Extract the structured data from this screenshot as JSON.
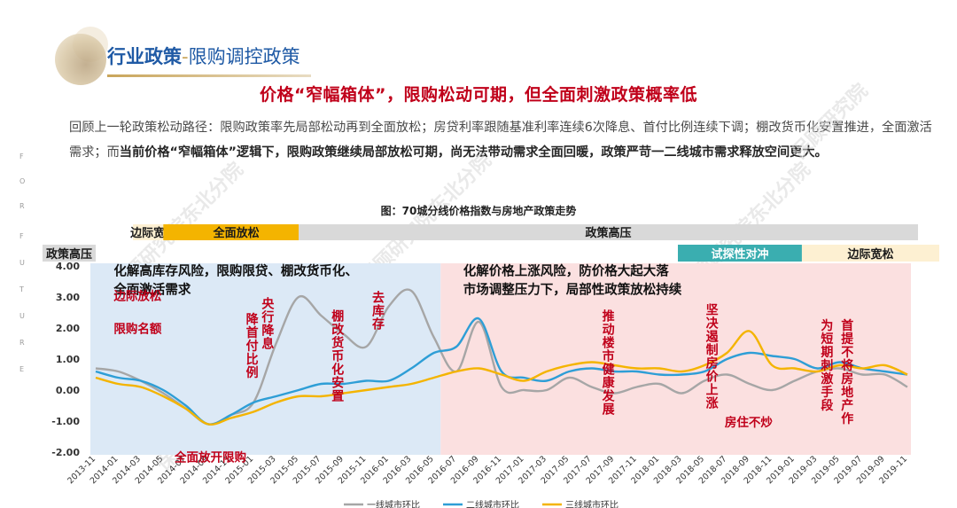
{
  "header": {
    "title_part1": "行业政策",
    "title_sep": "-",
    "title_part2": "限购调控政策",
    "headline": "价格“窄幅箱体”，限购松动可期，但全面刺激政策概率低"
  },
  "intro": {
    "normal": "回顾上一轮政策松动路径：限购政策率先局部松动再到全面放松；房贷利率跟随基准利率连续6次降息、首付比例连续下调；棚改货币化安置推进，全面激活需求；而",
    "bold": "当前价格“窄幅箱体”逻辑下，限购政策继续局部放松可期，尚无法带动需求全面回暖，政策严苛一二线城市需求释放空间更大。"
  },
  "side_letters": [
    "F",
    "O",
    "R",
    "F",
    "U",
    "T",
    "U",
    "R",
    "E"
  ],
  "watermarks": [
    "保顾研究院",
    "保顾研究院东北分院",
    "保顾研究院东北分院",
    "保顾研究院东北分院",
    "保顾研究院东北分院",
    "保顾研究院东北分院"
  ],
  "chart_data": {
    "type": "line",
    "title": "图：70城分线价格指数与房地产政策走势",
    "ylim": [
      -2,
      4
    ],
    "yticks": [
      "4.00",
      "3.00",
      "2.00",
      "1.00",
      "0.00",
      "-1.00",
      "-2.00"
    ],
    "x": [
      "2013-11",
      "2014-01",
      "2014-03",
      "2014-05",
      "2014-07",
      "2014-09",
      "2014-11",
      "2015-01",
      "2015-03",
      "2015-05",
      "2015-07",
      "2015-09",
      "2015-11",
      "2016-01",
      "2016-03",
      "2016-05",
      "2016-07",
      "2016-09",
      "2016-11",
      "2017-01",
      "2017-03",
      "2017-05",
      "2017-07",
      "2017-09",
      "2017-11",
      "2018-01",
      "2018-03",
      "2018-05",
      "2018-07",
      "2018-09",
      "2018-11",
      "2019-01",
      "2019-03",
      "2019-05",
      "2019-07",
      "2019-09",
      "2019-11"
    ],
    "series": [
      {
        "name": "一线城市环比",
        "color": "#a6a6a6",
        "values": [
          0.7,
          0.6,
          0.3,
          -0.1,
          -0.6,
          -1.1,
          -0.8,
          -0.4,
          1.5,
          3.0,
          2.4,
          1.8,
          1.4,
          2.7,
          3.2,
          1.7,
          0.6,
          2.2,
          0.1,
          0.0,
          0.0,
          0.4,
          0.1,
          -0.1,
          0.1,
          0.2,
          -0.1,
          0.3,
          0.5,
          0.2,
          0.0,
          0.3,
          0.6,
          0.7,
          0.5,
          0.5,
          0.1
        ]
      },
      {
        "name": "二线城市环比",
        "color": "#2e9ed6",
        "values": [
          0.6,
          0.4,
          0.3,
          0.0,
          -0.5,
          -1.1,
          -0.8,
          -0.4,
          -0.2,
          0.0,
          0.2,
          0.2,
          0.3,
          0.3,
          0.7,
          1.2,
          1.4,
          2.3,
          0.6,
          0.4,
          0.3,
          0.6,
          0.7,
          0.6,
          0.6,
          0.5,
          0.5,
          0.6,
          1.0,
          1.2,
          1.1,
          1.0,
          0.7,
          0.9,
          0.7,
          0.6,
          0.5
        ]
      },
      {
        "name": "三线城市环比",
        "color": "#f4b400",
        "values": [
          0.4,
          0.2,
          0.1,
          -0.2,
          -0.6,
          -1.1,
          -0.9,
          -0.7,
          -0.4,
          -0.2,
          -0.2,
          -0.1,
          0.0,
          0.1,
          0.2,
          0.4,
          0.6,
          0.7,
          0.5,
          0.3,
          0.6,
          0.8,
          0.9,
          0.8,
          0.7,
          0.7,
          0.6,
          0.8,
          1.2,
          1.9,
          0.8,
          0.7,
          0.6,
          0.8,
          0.7,
          0.8,
          0.5
        ]
      }
    ],
    "policy_rows": {
      "upper": [
        {
          "label": "边际宽松",
          "color": "#fdf0d2",
          "text_color": "#1a1a1a",
          "from": 0,
          "to": 3
        },
        {
          "label": "全面放松",
          "color": "#f4b400",
          "text_color": "#1a1a1a",
          "from": 3,
          "to": 9
        },
        {
          "label": "政策高压",
          "color": "#d9d9d9",
          "text_color": "#1a1a1a",
          "from": 9,
          "to": 36
        }
      ],
      "lower": [
        {
          "label": "政策高压",
          "color": "#d9d9d9",
          "text_color": "#1a1a1a",
          "from": 0,
          "to": 1
        },
        {
          "label": "试探性对冲",
          "color": "#3aaeb0",
          "text_color": "#ffffff",
          "from": 27,
          "to": 32.5
        },
        {
          "label": "边际宽松",
          "color": "#fdf0d2",
          "text_color": "#1a1a1a",
          "from": 32.5,
          "to": 36
        }
      ]
    },
    "regions": [
      {
        "color": "#dce9f6",
        "from": 0,
        "to": 15.3
      },
      {
        "color": "#fbe0e0",
        "from": 15.3,
        "to": 36
      }
    ],
    "region_texts": [
      {
        "text": "化解高库存风险，限购限贷、棚改货币化、",
        "x": 0.8,
        "y": 3.7
      },
      {
        "text": "全面激活需求",
        "x": 0.8,
        "y": 3.1
      },
      {
        "text": "化解价格上涨风险，防价格大起大落",
        "x": 16.3,
        "y": 3.7
      },
      {
        "text": "市场调整压力下，局部性政策放松持续",
        "x": 16.3,
        "y": 3.1
      }
    ],
    "annotations_h": [
      {
        "text": "边际放松",
        "x": 0.8,
        "y": 2.9
      },
      {
        "text": "限购名额",
        "x": 0.8,
        "y": 1.85
      },
      {
        "text": "全面放开限购",
        "x": 3.5,
        "y": -2.3
      }
    ],
    "annotations_v": [
      {
        "text": "降首付比例",
        "x": 6.9,
        "y": 2.5
      },
      {
        "text": "央行降息",
        "x": 7.6,
        "y": 3.0
      },
      {
        "text": "棚改货币化安置",
        "x": 10.7,
        "y": 2.6
      },
      {
        "text": "去库存",
        "x": 12.5,
        "y": 3.2
      },
      {
        "text": "推动楼市健康发展",
        "x": 22.7,
        "y": 2.6
      },
      {
        "text": "坚决遏制房价上涨",
        "x": 27.3,
        "y": 2.8
      },
      {
        "text": "为短期刺激手段",
        "x": 32.4,
        "y": 2.3
      },
      {
        "text": "首提不将房地产作",
        "x": 33.3,
        "y": 2.3
      }
    ],
    "annotation_plain": {
      "text": "房住不炒",
      "x": 27.9,
      "y": -0.2
    }
  }
}
